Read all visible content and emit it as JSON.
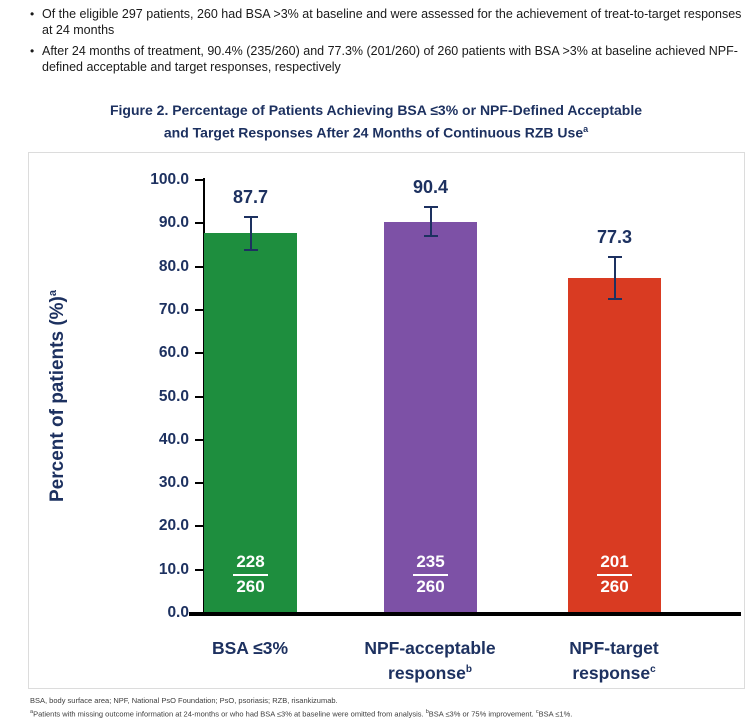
{
  "bullets": [
    "Of the eligible 297 patients, 260 had BSA >3% at baseline and were assessed for the achievement of treat-to-target responses at 24 months",
    "After 24 months of treatment, 90.4% (235/260) and 77.3% (201/260) of 260 patients with BSA >3% at baseline achieved NPF-defined acceptable and target responses, respectively"
  ],
  "bullet_glyph": "•",
  "figure": {
    "title_line1": "Figure 2. Percentage of Patients Achieving BSA ≤3% or NPF-Defined Acceptable",
    "title_line2": "and Target Responses After 24 Months of Continuous RZB Use",
    "title_sup": "a"
  },
  "chart_data": {
    "type": "bar",
    "title": "Figure 2. Percentage of Patients Achieving BSA ≤3% or NPF-Defined Acceptable and Target Responses After 24 Months of Continuous RZB Use",
    "ylabel": "Percent of patients (%)",
    "ylabel_sup": "a",
    "xlabel": "",
    "ylim": [
      0,
      100
    ],
    "ytick_step": 10,
    "grid": false,
    "legend": false,
    "categories": [
      {
        "line1": "BSA ≤3%",
        "line2": "",
        "sup": ""
      },
      {
        "line1": "NPF-acceptable",
        "line2": "response",
        "sup": "b"
      },
      {
        "line1": "NPF-target",
        "line2": "response",
        "sup": "c"
      }
    ],
    "values": [
      87.7,
      90.4,
      77.3
    ],
    "errors": [
      4.0,
      3.6,
      5.1
    ],
    "numerators": [
      "228",
      "235",
      "201"
    ],
    "denominators": [
      "260",
      "260",
      "260"
    ],
    "bar_colors": [
      "#1e8e3e",
      "#7d51a6",
      "#d93b22"
    ],
    "error_color": "#1d3160"
  },
  "colors": {
    "navy": "#1d3160",
    "axis": "#000000",
    "frame_border": "#dcdcdc"
  },
  "footnotes": {
    "line1": "BSA, body surface area; NPF, National PsO Foundation; PsO, psoriasis; RZB, risankizumab.",
    "sup_a": "a",
    "part_a": "Patients with missing outcome information at 24-months or who had BSA ≤3% at baseline were omitted from analysis. ",
    "sup_b": "b",
    "part_b": "BSA ≤3% or 75% improvement. ",
    "sup_c": "c",
    "part_c": "BSA ≤1%."
  }
}
